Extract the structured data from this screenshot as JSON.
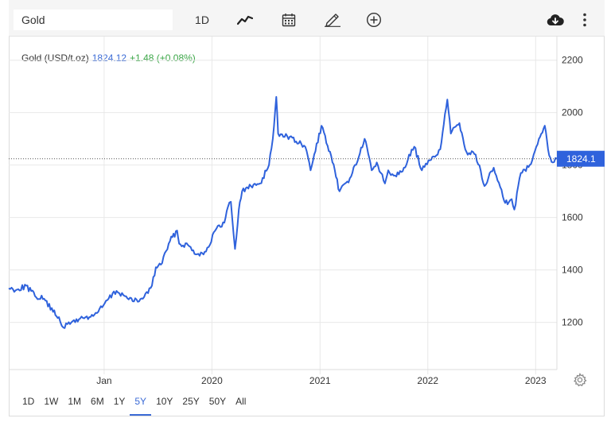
{
  "toolbar": {
    "symbol_value": "Gold",
    "interval_label": "1D",
    "icons": [
      "line-chart-icon",
      "calendar-icon",
      "pencil-icon",
      "plus-circle-icon",
      "cloud-download-icon",
      "more-vertical-icon"
    ]
  },
  "legend": {
    "name": "Gold (USD/t.oz)",
    "last": "1824.12",
    "change": "+1.48 (+0.08%)"
  },
  "last_price_label": "1824.1",
  "colors": {
    "line": "#2f62dc",
    "up": "#3aa646",
    "grid": "#e8e8e8",
    "badge": "#2f62dc"
  },
  "ranges": [
    "1D",
    "1W",
    "1M",
    "6M",
    "1Y",
    "5Y",
    "10Y",
    "25Y",
    "50Y",
    "All"
  ],
  "active_range": "5Y",
  "chart_data": {
    "type": "line",
    "title": "",
    "xlabel": "",
    "ylabel": "",
    "y_ticks": [
      1200,
      1400,
      1600,
      1800,
      2000,
      2200
    ],
    "ylim": [
      1020,
      2290
    ],
    "xlim": [
      "2018-02-12",
      "2023-03-14"
    ],
    "x_ticks": [
      {
        "date": "2019-01-01",
        "label": "Jan"
      },
      {
        "date": "2020-01-01",
        "label": "2020"
      },
      {
        "date": "2021-01-01",
        "label": "2021"
      },
      {
        "date": "2022-01-01",
        "label": "2022"
      },
      {
        "date": "2023-01-01",
        "label": "2023"
      }
    ],
    "last_value": 1824.1,
    "grid": true,
    "series": [
      {
        "x": [
          "2018-02-12",
          "2018-03-12",
          "2018-04-12",
          "2018-05-12",
          "2018-06-12",
          "2018-07-12",
          "2018-08-01",
          "2018-08-16",
          "2018-09-12",
          "2018-10-12",
          "2018-11-12",
          "2018-12-12",
          "2019-01-12",
          "2019-02-12",
          "2019-03-12",
          "2019-04-12",
          "2019-05-12",
          "2019-06-12",
          "2019-06-25",
          "2019-07-12",
          "2019-08-12",
          "2019-09-05",
          "2019-09-12",
          "2019-10-12",
          "2019-11-12",
          "2019-12-12",
          "2020-01-12",
          "2020-02-12",
          "2020-02-24",
          "2020-03-05",
          "2020-03-19",
          "2020-04-01",
          "2020-04-12",
          "2020-05-12",
          "2020-06-12",
          "2020-07-12",
          "2020-07-25",
          "2020-08-06",
          "2020-08-12",
          "2020-09-12",
          "2020-10-12",
          "2020-11-12",
          "2020-11-30",
          "2021-01-06",
          "2021-02-12",
          "2021-03-08",
          "2021-04-12",
          "2021-05-12",
          "2021-06-01",
          "2021-06-25",
          "2021-07-12",
          "2021-08-09",
          "2021-08-20",
          "2021-09-12",
          "2021-10-12",
          "2021-11-16",
          "2021-12-12",
          "2022-01-12",
          "2022-02-12",
          "2022-03-08",
          "2022-03-20",
          "2022-04-18",
          "2022-05-12",
          "2022-06-12",
          "2022-07-12",
          "2022-08-12",
          "2022-09-12",
          "2022-09-28",
          "2022-10-12",
          "2022-10-21",
          "2022-11-12",
          "2022-12-12",
          "2023-01-12",
          "2023-02-01",
          "2023-02-12",
          "2023-02-28",
          "2023-03-14"
        ],
        "values": [
          1330,
          1325,
          1340,
          1300,
          1290,
          1240,
          1220,
          1180,
          1200,
          1215,
          1220,
          1240,
          1285,
          1320,
          1300,
          1280,
          1290,
          1340,
          1410,
          1420,
          1510,
          1550,
          1500,
          1495,
          1460,
          1470,
          1550,
          1580,
          1640,
          1660,
          1480,
          1630,
          1700,
          1720,
          1730,
          1800,
          1900,
          2060,
          1920,
          1910,
          1890,
          1870,
          1780,
          1950,
          1810,
          1700,
          1750,
          1830,
          1900,
          1780,
          1810,
          1730,
          1780,
          1760,
          1790,
          1870,
          1780,
          1820,
          1860,
          2050,
          1920,
          1960,
          1850,
          1840,
          1720,
          1790,
          1680,
          1650,
          1670,
          1630,
          1770,
          1800,
          1900,
          1950,
          1860,
          1810,
          1824
        ]
      }
    ]
  }
}
